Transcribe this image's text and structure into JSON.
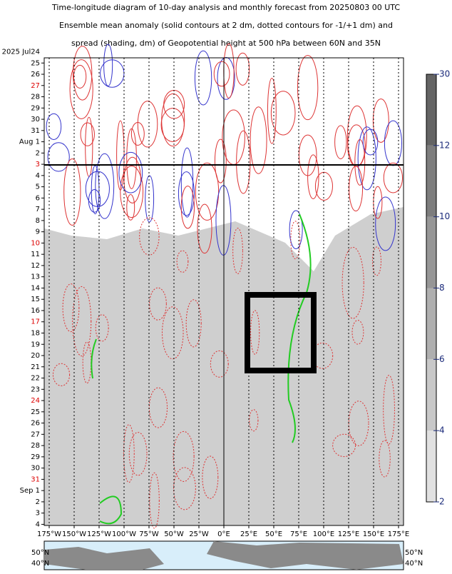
{
  "chart_data": {
    "type": "contour",
    "title_lines": [
      "Time-longitude diagram of 10-day analysis and monthly forecast from 20250803 00 UTC",
      "Ensemble mean anomaly (solid contours at 2 dm, dotted contours for -1/+1 dm) and",
      "spread (shading, dm) of Geopotential height at 500 hPa between 60N and 35N"
    ],
    "dates": [
      "2025  Jul24",
      "25",
      "26",
      "27",
      "28",
      "29",
      "30",
      "31",
      "Aug 1",
      "2",
      "3",
      "4",
      "5",
      "6",
      "7",
      "8",
      "9",
      "10",
      "11",
      "12",
      "13",
      "14",
      "15",
      "16",
      "17",
      "18",
      "19",
      "20",
      "21",
      "22",
      "23",
      "24",
      "25",
      "26",
      "27",
      "28",
      "29",
      "30",
      "31",
      "Sep 1",
      "2",
      "3",
      "4"
    ],
    "date_colors": [
      "#000",
      "#000",
      "#000",
      "#d00",
      "#000",
      "#000",
      "#000",
      "#000",
      "#000",
      "#000",
      "#d00",
      "#000",
      "#000",
      "#000",
      "#000",
      "#000",
      "#000",
      "#d00",
      "#000",
      "#000",
      "#000",
      "#000",
      "#000",
      "#000",
      "#d00",
      "#000",
      "#000",
      "#000",
      "#000",
      "#000",
      "#000",
      "#d00",
      "#000",
      "#000",
      "#000",
      "#000",
      "#000",
      "#000",
      "#d00",
      "#000",
      "#000",
      "#000",
      "#000"
    ],
    "xlim": [
      -180,
      180
    ],
    "xticks": [
      {
        "value": -175,
        "label": "175°W"
      },
      {
        "value": -150,
        "label": "150°W"
      },
      {
        "value": -125,
        "label": "125°W"
      },
      {
        "value": -100,
        "label": "100°W"
      },
      {
        "value": -75,
        "label": "75°W"
      },
      {
        "value": -50,
        "label": "50°W"
      },
      {
        "value": -25,
        "label": "25°W"
      },
      {
        "value": 0,
        "label": "0°E"
      },
      {
        "value": 25,
        "label": "25°E"
      },
      {
        "value": 50,
        "label": "50°E"
      },
      {
        "value": 75,
        "label": "75°E"
      },
      {
        "value": 100,
        "label": "100°E"
      },
      {
        "value": 125,
        "label": "125°E"
      },
      {
        "value": 150,
        "label": "150°E"
      },
      {
        "value": 175,
        "label": "175°E"
      }
    ],
    "colorbar_ticks": [
      2,
      4,
      6,
      8,
      10,
      12,
      30
    ],
    "map_labels": [
      "50°N",
      "40°N"
    ]
  }
}
